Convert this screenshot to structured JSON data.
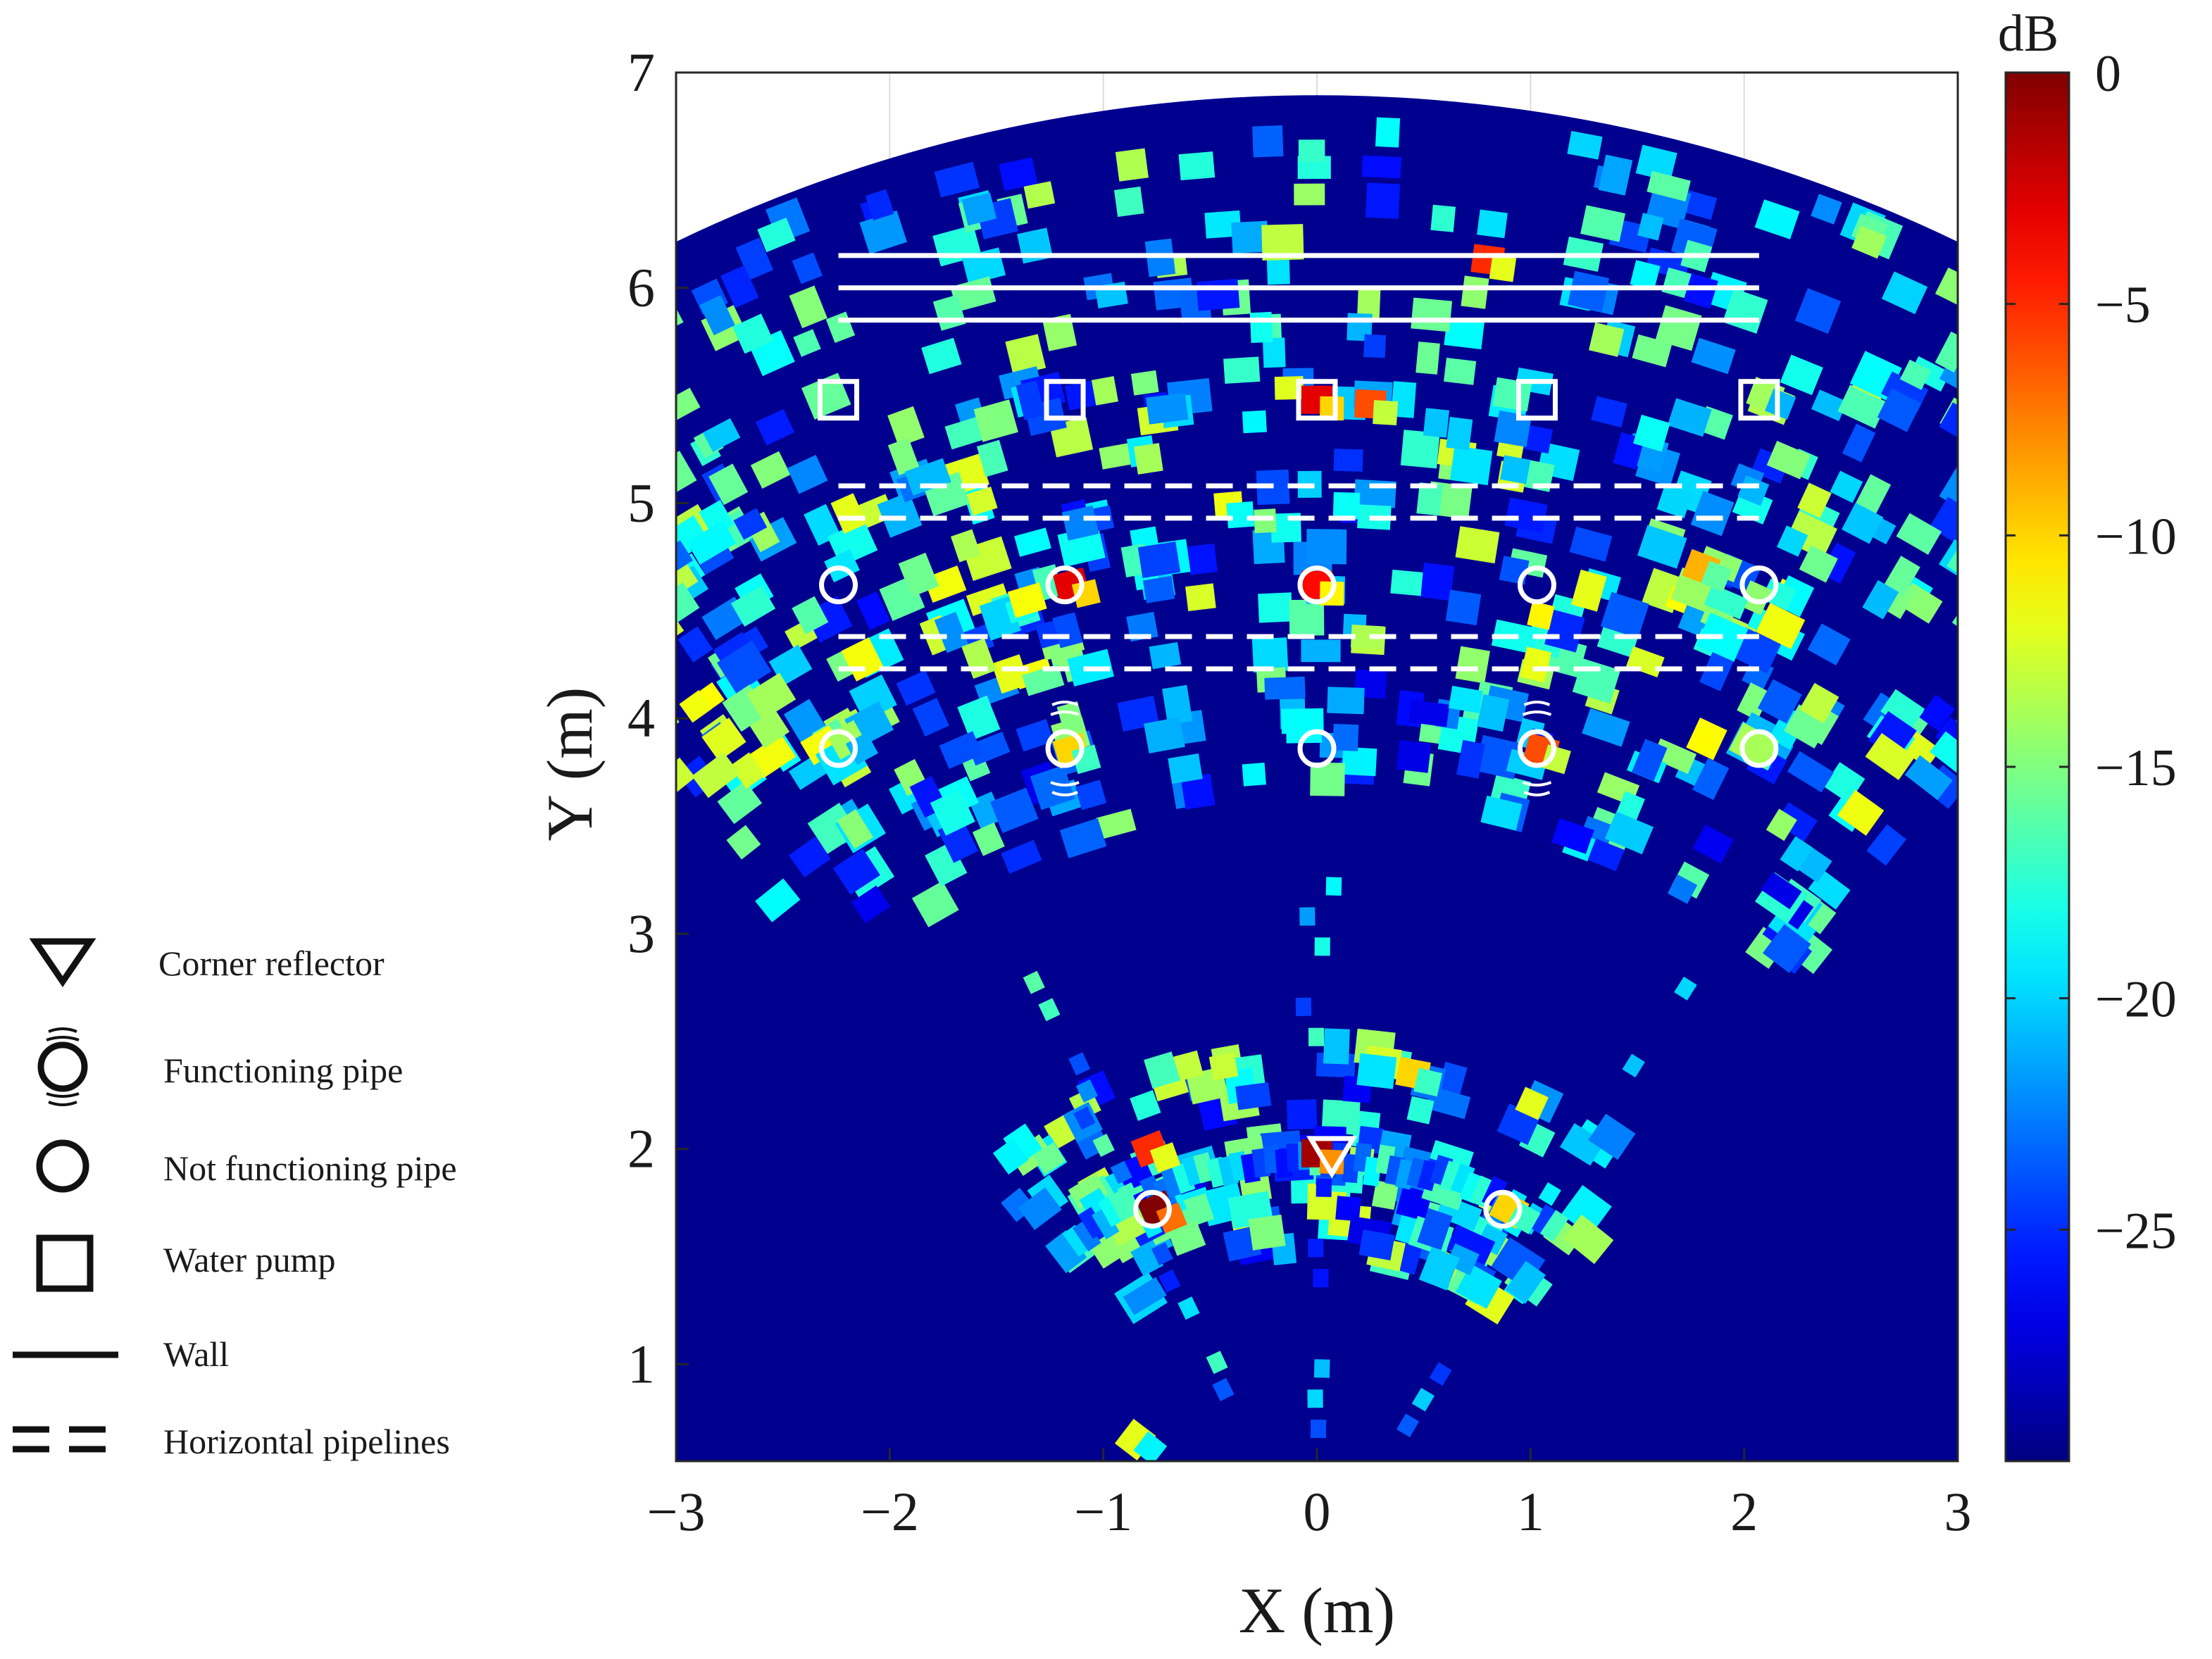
{
  "chart_data": {
    "type": "heatmap",
    "description": "",
    "xlabel": "X (m)",
    "ylabel": "Y (m)",
    "xlim": [
      -3,
      3
    ],
    "ylim": [
      0.55,
      7
    ],
    "x_ticks": [
      "−3",
      "−2",
      "−1",
      "0",
      "1",
      "2",
      "3"
    ],
    "y_ticks": [
      "1",
      "2",
      "3",
      "4",
      "5",
      "6",
      "7"
    ],
    "grid": true,
    "sector_max_range_m": 6.9,
    "colorbar": {
      "unit": "dB",
      "range": [
        -30,
        0
      ],
      "colormap": "jet",
      "ticks": [
        "0",
        "−5",
        "−10",
        "−15",
        "−20",
        "−25"
      ]
    },
    "background_color": "#00008f",
    "hotspots": [
      {
        "x": -1.15,
        "y": 4.62,
        "dB": -3
      },
      {
        "x": 0.0,
        "y": 4.62,
        "dB": -4
      },
      {
        "x": 0.0,
        "y": 5.48,
        "dB": -3
      },
      {
        "x": 0.25,
        "y": 5.46,
        "dB": -6
      },
      {
        "x": 0.8,
        "y": 6.13,
        "dB": -5
      },
      {
        "x": -0.75,
        "y": 1.72,
        "dB": 0
      },
      {
        "x": 0.0,
        "y": 1.98,
        "dB": -1
      },
      {
        "x": -0.78,
        "y": 2.0,
        "dB": -5
      },
      {
        "x": 1.8,
        "y": 4.7,
        "dB": -9
      },
      {
        "x": 1.05,
        "y": 3.85,
        "dB": -6
      },
      {
        "x": -1.15,
        "y": 3.85,
        "dB": -10
      },
      {
        "x": 0.45,
        "y": 2.35,
        "dB": -10
      },
      {
        "x": 0.9,
        "y": 1.72,
        "dB": -10
      },
      {
        "x": -0.85,
        "y": 0.65,
        "dB": -12
      },
      {
        "x": -2.2,
        "y": 3.9,
        "dB": -14
      },
      {
        "x": 2.1,
        "y": 5.5,
        "dB": -14
      }
    ],
    "markers": {
      "corner_reflector": [
        {
          "x": 0.07,
          "y": 1.97
        }
      ],
      "functioning_pipe": [
        {
          "x": -1.18,
          "y": 3.86
        },
        {
          "x": 1.03,
          "y": 3.86
        }
      ],
      "not_functioning_pipe": [
        {
          "x": -2.24,
          "y": 3.86
        },
        {
          "x": 0.0,
          "y": 3.86
        },
        {
          "x": 2.07,
          "y": 3.86
        },
        {
          "x": -2.24,
          "y": 4.62
        },
        {
          "x": -1.18,
          "y": 4.62
        },
        {
          "x": 0.0,
          "y": 4.62
        },
        {
          "x": 1.03,
          "y": 4.62
        },
        {
          "x": 2.07,
          "y": 4.62
        },
        {
          "x": -0.77,
          "y": 1.72
        },
        {
          "x": 0.87,
          "y": 1.72
        }
      ],
      "water_pump": [
        {
          "x": -2.24,
          "y": 5.48
        },
        {
          "x": -1.18,
          "y": 5.48
        },
        {
          "x": 0.0,
          "y": 5.48
        },
        {
          "x": 1.03,
          "y": 5.48
        },
        {
          "x": 2.07,
          "y": 5.48
        }
      ],
      "walls": [
        {
          "x0": -2.24,
          "x1": 2.07,
          "y": 6.15
        },
        {
          "x0": -2.24,
          "x1": 2.07,
          "y": 6.0
        },
        {
          "x0": -2.24,
          "x1": 2.07,
          "y": 5.85
        }
      ],
      "horizontal_pipelines": [
        {
          "x0": -2.24,
          "x1": 2.07,
          "y": 5.08
        },
        {
          "x0": -2.24,
          "x1": 2.07,
          "y": 4.93
        },
        {
          "x0": -2.24,
          "x1": 2.07,
          "y": 4.38
        },
        {
          "x0": -2.24,
          "x1": 2.07,
          "y": 4.23
        }
      ]
    },
    "legend": {
      "placement": "left",
      "entries": [
        {
          "symbol": "triangle-down",
          "label": "Corner reflector"
        },
        {
          "symbol": "functioning-pipe",
          "label": "Functioning pipe"
        },
        {
          "symbol": "circle",
          "label": "Not functioning pipe"
        },
        {
          "symbol": "square",
          "label": "Water pump"
        },
        {
          "symbol": "solid-line",
          "label": "Wall"
        },
        {
          "symbol": "dashed-line",
          "label": "Horizontal pipelines"
        }
      ]
    }
  }
}
